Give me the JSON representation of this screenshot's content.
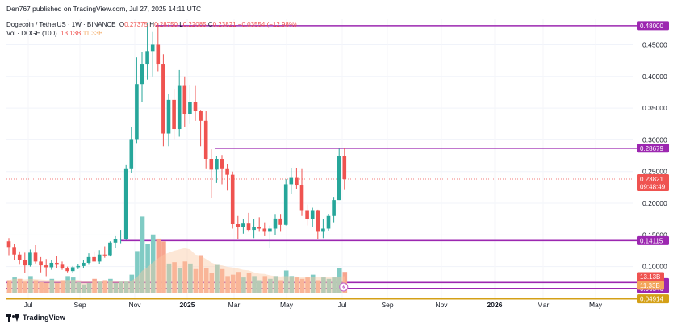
{
  "header": {
    "publisher": "Den767 published on TradingView.com, Jul 27, 2025 14:11 UTC",
    "symbol_line": "Dogecoin / TetherUS · 1W · BINANCE",
    "ohlc": {
      "o_label": "O",
      "o": "0.27375",
      "h_label": "H",
      "h": "0.28750",
      "l_label": "L",
      "l": "0.22085",
      "c_label": "C",
      "c": "0.23821",
      "change": "−0.03554 (−12.98%)"
    },
    "volume_line": "Vol · DOGE (100)",
    "vol_value_1": "13.13B",
    "vol_value_2": "11.33B"
  },
  "footer": {
    "brand": "TradingView"
  },
  "colors": {
    "up": "#26a69a",
    "down": "#ef5350",
    "vol_up": "#80cbc4",
    "vol_down": "#f7a58f",
    "vol_ma": "#fbc9a3",
    "purple": "#9c27b0",
    "orange": "#d4a017",
    "price_red": "#ef5350"
  },
  "chart_data": {
    "type": "candlestick",
    "symbol": "Dogecoin / TetherUS",
    "interval": "1W",
    "exchange": "BINANCE",
    "ylim": [
      0.05,
      0.49
    ],
    "y_ticks": [
      "0.45000",
      "0.40000",
      "0.35000",
      "0.30000",
      "0.25000",
      "0.20000",
      "0.15000",
      "0.10000"
    ],
    "x_ticks": [
      "Jul",
      "Sep",
      "Nov",
      "2025",
      "Mar",
      "May",
      "Jul",
      "Sep",
      "Nov",
      "2026",
      "Mar",
      "May"
    ],
    "x_ticks_bold": [
      "2025",
      "2026"
    ],
    "candles": [
      {
        "o": 0.14,
        "h": 0.145,
        "l": 0.118,
        "c": 0.131
      },
      {
        "o": 0.131,
        "h": 0.136,
        "l": 0.11,
        "c": 0.119
      },
      {
        "o": 0.119,
        "h": 0.124,
        "l": 0.103,
        "c": 0.11
      },
      {
        "o": 0.11,
        "h": 0.122,
        "l": 0.09,
        "c": 0.102
      },
      {
        "o": 0.102,
        "h": 0.127,
        "l": 0.1,
        "c": 0.122
      },
      {
        "o": 0.122,
        "h": 0.134,
        "l": 0.105,
        "c": 0.108
      },
      {
        "o": 0.108,
        "h": 0.115,
        "l": 0.091,
        "c": 0.102
      },
      {
        "o": 0.102,
        "h": 0.112,
        "l": 0.085,
        "c": 0.099
      },
      {
        "o": 0.099,
        "h": 0.11,
        "l": 0.095,
        "c": 0.106
      },
      {
        "o": 0.106,
        "h": 0.117,
        "l": 0.098,
        "c": 0.103
      },
      {
        "o": 0.103,
        "h": 0.108,
        "l": 0.095,
        "c": 0.097
      },
      {
        "o": 0.097,
        "h": 0.1,
        "l": 0.091,
        "c": 0.093
      },
      {
        "o": 0.093,
        "h": 0.101,
        "l": 0.09,
        "c": 0.099
      },
      {
        "o": 0.099,
        "h": 0.104,
        "l": 0.096,
        "c": 0.101
      },
      {
        "o": 0.101,
        "h": 0.111,
        "l": 0.097,
        "c": 0.106
      },
      {
        "o": 0.106,
        "h": 0.121,
        "l": 0.103,
        "c": 0.115
      },
      {
        "o": 0.115,
        "h": 0.124,
        "l": 0.11,
        "c": 0.108
      },
      {
        "o": 0.108,
        "h": 0.126,
        "l": 0.104,
        "c": 0.119
      },
      {
        "o": 0.119,
        "h": 0.132,
        "l": 0.114,
        "c": 0.118
      },
      {
        "o": 0.118,
        "h": 0.14,
        "l": 0.116,
        "c": 0.138
      },
      {
        "o": 0.138,
        "h": 0.148,
        "l": 0.13,
        "c": 0.143
      },
      {
        "o": 0.143,
        "h": 0.158,
        "l": 0.137,
        "c": 0.144
      },
      {
        "o": 0.144,
        "h": 0.26,
        "l": 0.142,
        "c": 0.255
      },
      {
        "o": 0.255,
        "h": 0.32,
        "l": 0.248,
        "c": 0.3
      },
      {
        "o": 0.3,
        "h": 0.43,
        "l": 0.295,
        "c": 0.388
      },
      {
        "o": 0.388,
        "h": 0.438,
        "l": 0.36,
        "c": 0.42
      },
      {
        "o": 0.42,
        "h": 0.485,
        "l": 0.395,
        "c": 0.44
      },
      {
        "o": 0.44,
        "h": 0.47,
        "l": 0.4,
        "c": 0.45
      },
      {
        "o": 0.45,
        "h": 0.484,
        "l": 0.408,
        "c": 0.42
      },
      {
        "o": 0.42,
        "h": 0.435,
        "l": 0.29,
        "c": 0.31
      },
      {
        "o": 0.31,
        "h": 0.372,
        "l": 0.29,
        "c": 0.363
      },
      {
        "o": 0.363,
        "h": 0.38,
        "l": 0.3,
        "c": 0.317
      },
      {
        "o": 0.317,
        "h": 0.41,
        "l": 0.305,
        "c": 0.385
      },
      {
        "o": 0.385,
        "h": 0.4,
        "l": 0.32,
        "c": 0.34
      },
      {
        "o": 0.34,
        "h": 0.387,
        "l": 0.325,
        "c": 0.36
      },
      {
        "o": 0.36,
        "h": 0.385,
        "l": 0.33,
        "c": 0.345
      },
      {
        "o": 0.345,
        "h": 0.346,
        "l": 0.29,
        "c": 0.33
      },
      {
        "o": 0.33,
        "h": 0.345,
        "l": 0.255,
        "c": 0.27
      },
      {
        "o": 0.27,
        "h": 0.285,
        "l": 0.208,
        "c": 0.253
      },
      {
        "o": 0.253,
        "h": 0.275,
        "l": 0.232,
        "c": 0.27
      },
      {
        "o": 0.27,
        "h": 0.276,
        "l": 0.23,
        "c": 0.255
      },
      {
        "o": 0.255,
        "h": 0.262,
        "l": 0.22,
        "c": 0.245
      },
      {
        "o": 0.245,
        "h": 0.25,
        "l": 0.16,
        "c": 0.167
      },
      {
        "o": 0.167,
        "h": 0.18,
        "l": 0.143,
        "c": 0.162
      },
      {
        "o": 0.162,
        "h": 0.175,
        "l": 0.152,
        "c": 0.168
      },
      {
        "o": 0.168,
        "h": 0.185,
        "l": 0.155,
        "c": 0.158
      },
      {
        "o": 0.158,
        "h": 0.175,
        "l": 0.145,
        "c": 0.162
      },
      {
        "o": 0.162,
        "h": 0.178,
        "l": 0.155,
        "c": 0.16
      },
      {
        "o": 0.16,
        "h": 0.17,
        "l": 0.148,
        "c": 0.155
      },
      {
        "o": 0.155,
        "h": 0.165,
        "l": 0.13,
        "c": 0.16
      },
      {
        "o": 0.16,
        "h": 0.182,
        "l": 0.15,
        "c": 0.176
      },
      {
        "o": 0.176,
        "h": 0.182,
        "l": 0.155,
        "c": 0.166
      },
      {
        "o": 0.166,
        "h": 0.238,
        "l": 0.165,
        "c": 0.23
      },
      {
        "o": 0.23,
        "h": 0.256,
        "l": 0.215,
        "c": 0.24
      },
      {
        "o": 0.24,
        "h": 0.256,
        "l": 0.222,
        "c": 0.228
      },
      {
        "o": 0.228,
        "h": 0.255,
        "l": 0.18,
        "c": 0.188
      },
      {
        "o": 0.188,
        "h": 0.198,
        "l": 0.165,
        "c": 0.175
      },
      {
        "o": 0.175,
        "h": 0.193,
        "l": 0.162,
        "c": 0.188
      },
      {
        "o": 0.188,
        "h": 0.19,
        "l": 0.143,
        "c": 0.155
      },
      {
        "o": 0.155,
        "h": 0.175,
        "l": 0.145,
        "c": 0.16
      },
      {
        "o": 0.16,
        "h": 0.183,
        "l": 0.157,
        "c": 0.18
      },
      {
        "o": 0.18,
        "h": 0.21,
        "l": 0.17,
        "c": 0.205
      },
      {
        "o": 0.205,
        "h": 0.286,
        "l": 0.205,
        "c": 0.274
      },
      {
        "o": 0.274,
        "h": 0.2875,
        "l": 0.22085,
        "c": 0.23821
      }
    ],
    "volume": {
      "max": 100,
      "values": [
        18,
        22,
        20,
        16,
        24,
        18,
        15,
        14,
        20,
        14,
        18,
        24,
        22,
        15,
        12,
        14,
        20,
        16,
        18,
        20,
        14,
        16,
        16,
        26,
        60,
        110,
        70,
        84,
        78,
        74,
        42,
        44,
        36,
        45,
        42,
        34,
        54,
        36,
        29,
        40,
        34,
        24,
        26,
        30,
        22,
        28,
        24,
        18,
        24,
        20,
        24,
        18,
        32,
        24,
        22,
        20,
        22,
        26,
        18,
        22,
        20,
        22,
        36,
        30
      ],
      "up_flags": [
        0,
        1,
        0,
        0,
        1,
        0,
        0,
        0,
        1,
        0,
        0,
        1,
        1,
        1,
        1,
        1,
        0,
        1,
        0,
        1,
        1,
        1,
        1,
        1,
        1,
        1,
        1,
        1,
        0,
        0,
        1,
        0,
        1,
        0,
        1,
        0,
        0,
        0,
        0,
        1,
        0,
        0,
        0,
        0,
        1,
        0,
        1,
        1,
        0,
        1,
        1,
        0,
        1,
        1,
        0,
        0,
        0,
        1,
        0,
        1,
        1,
        1,
        1,
        0
      ]
    },
    "horizontal_levels": [
      {
        "value": 0.48,
        "label": "0.48000",
        "color": "#9c27b0"
      },
      {
        "value": 0.28679,
        "label": "0.28679",
        "color": "#9c27b0"
      },
      {
        "value": 0.14115,
        "label": "0.14115",
        "color": "#9c27b0"
      },
      {
        "value": 0.075,
        "label": "0.07500",
        "color": "#9c27b0"
      },
      {
        "value": 0.06546,
        "label": "0.06546",
        "color": "#9c27b0"
      },
      {
        "value": 0.04914,
        "label": "0.04914",
        "color": "#d4a017"
      }
    ],
    "last_price": {
      "value": 0.23821,
      "label": "0.23821",
      "countdown": "09:48:49"
    },
    "volume_labels": [
      {
        "label": "13.13B",
        "color": "#ef5350"
      },
      {
        "label": "11.33B",
        "color": "#f3a55a"
      }
    ]
  }
}
